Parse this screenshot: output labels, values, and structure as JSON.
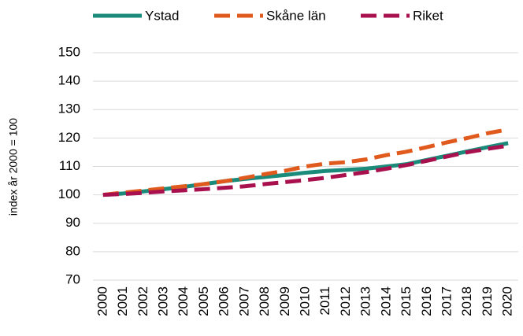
{
  "chart_data": {
    "type": "line",
    "y_label": "index år 2000 = 100",
    "categories": [
      "2000",
      "2001",
      "2002",
      "2003",
      "2004",
      "2005",
      "2006",
      "2007",
      "2008",
      "2009",
      "2010",
      "2011",
      "2012",
      "2013",
      "2014",
      "2015",
      "2016",
      "2017",
      "2018",
      "2019",
      "2020"
    ],
    "series": [
      {
        "name": "Ystad",
        "color": "#1a8a7a",
        "dashed": false,
        "values": [
          100,
          100.5,
          101.2,
          102,
          102.8,
          103.8,
          104.8,
          105.6,
          106.3,
          107,
          107.8,
          108.4,
          108.8,
          109.2,
          110,
          110.8,
          112.3,
          113.8,
          115.3,
          116.8,
          118.2
        ]
      },
      {
        "name": "Skåne län",
        "color": "#e05a1e",
        "dashed": true,
        "values": [
          100,
          100.8,
          101.5,
          102.3,
          103,
          103.8,
          104.8,
          106,
          107.3,
          108.5,
          110,
          111,
          111.5,
          112.5,
          114,
          115.2,
          116.8,
          118.5,
          120,
          121.7,
          123
        ]
      },
      {
        "name": "Riket",
        "color": "#a8104e",
        "dashed": true,
        "values": [
          100,
          100.3,
          100.7,
          101.2,
          101.6,
          102,
          102.5,
          103,
          103.8,
          104.5,
          105.2,
          106,
          107,
          108,
          109.2,
          110.5,
          112,
          113.5,
          115,
          116.2,
          117.3
        ]
      }
    ],
    "ylim": [
      70,
      150
    ],
    "yticks": [
      70,
      80,
      90,
      100,
      110,
      120,
      130,
      140,
      150
    ],
    "grid": true,
    "legend": "top"
  }
}
